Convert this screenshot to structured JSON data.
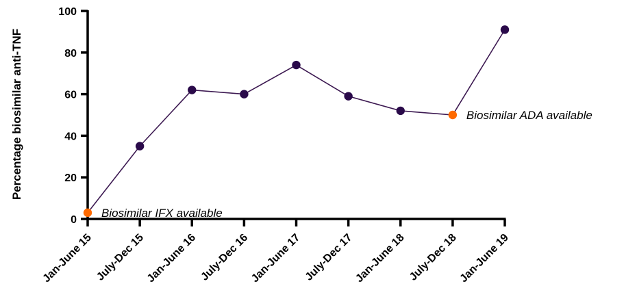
{
  "chart_data": {
    "type": "line",
    "ylabel": "Percentage biosimilar anti-TNF",
    "ylim": [
      0,
      100
    ],
    "y_ticks": [
      0,
      20,
      40,
      60,
      80,
      100
    ],
    "grid": false,
    "categories": [
      "Jan-June 15",
      "July-Dec 15",
      "Jan-June 16",
      "July-Dec 16",
      "Jan-June 17",
      "July-Dec 17",
      "Jan-June 18",
      "July-Dec 18",
      "Jan-June 19"
    ],
    "series": [
      {
        "values": [
          3,
          35,
          62,
          60,
          74,
          59,
          52,
          50,
          91
        ]
      }
    ],
    "annotations": [
      {
        "category_index": 0,
        "text": "Biosimilar IFX available"
      },
      {
        "category_index": 7,
        "text": "Biosimilar ADA available"
      }
    ],
    "colors": {
      "line": "#3d1a52",
      "marker": "#2a0a4a",
      "highlight_marker": "#ff6a00",
      "axis": "#000000"
    }
  }
}
